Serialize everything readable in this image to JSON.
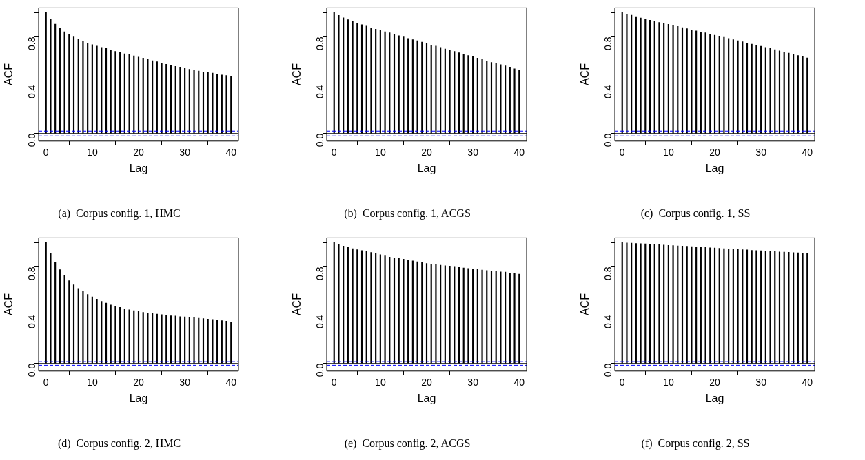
{
  "chart_data": [
    {
      "type": "bar",
      "title": "(a)  Corpus config. 1, HMC",
      "xlabel": "Lag",
      "ylabel": "ACF",
      "x": [
        0,
        1,
        2,
        3,
        4,
        5,
        6,
        7,
        8,
        9,
        10,
        11,
        12,
        13,
        14,
        15,
        16,
        17,
        18,
        19,
        20,
        21,
        22,
        23,
        24,
        25,
        26,
        27,
        28,
        29,
        30,
        31,
        32,
        33,
        34,
        35,
        36,
        37,
        38,
        39,
        40
      ],
      "values": [
        1.0,
        0.945,
        0.905,
        0.87,
        0.842,
        0.82,
        0.8,
        0.78,
        0.766,
        0.75,
        0.735,
        0.724,
        0.712,
        0.705,
        0.69,
        0.68,
        0.67,
        0.66,
        0.655,
        0.643,
        0.633,
        0.624,
        0.613,
        0.603,
        0.594,
        0.582,
        0.573,
        0.564,
        0.555,
        0.545,
        0.538,
        0.531,
        0.524,
        0.517,
        0.51,
        0.506,
        0.5,
        0.49,
        0.485,
        0.48,
        0.475
      ],
      "color": "#000000",
      "xlim": [
        -1.6,
        41.6
      ],
      "xticks": [
        0,
        10,
        20,
        30,
        40
      ],
      "ylim": [
        -0.063,
        1.04
      ],
      "yticks": [
        {
          "value": 0,
          "label": "0.0"
        },
        {
          "value": 0.2,
          "label": null
        },
        {
          "value": 0.4,
          "label": "0.4"
        },
        {
          "value": 0.6,
          "label": null
        },
        {
          "value": 0.8,
          "label": "0.8"
        },
        {
          "value": 1.0,
          "label": null
        }
      ],
      "grid": false,
      "legend": false,
      "ref_lines": [
        {
          "axis": "y",
          "value": 0,
          "color": "#000000",
          "line_style": "solid"
        },
        {
          "axis": "y",
          "value": 0.02,
          "color": "#0000ff",
          "line_style": "dashed"
        },
        {
          "axis": "y",
          "value": -0.02,
          "color": "#0000ff",
          "line_style": "dashed"
        }
      ]
    },
    {
      "type": "bar",
      "title": "(b)  Corpus config. 1, ACGS",
      "xlabel": "Lag",
      "ylabel": "ACF",
      "x": [
        0,
        1,
        2,
        3,
        4,
        5,
        6,
        7,
        8,
        9,
        10,
        11,
        12,
        13,
        14,
        15,
        16,
        17,
        18,
        19,
        20,
        21,
        22,
        23,
        24,
        25,
        26,
        27,
        28,
        29,
        30,
        31,
        32,
        33,
        34,
        35,
        36,
        37,
        38,
        39,
        40
      ],
      "values": [
        1.0,
        0.977,
        0.958,
        0.942,
        0.926,
        0.912,
        0.9,
        0.889,
        0.875,
        0.863,
        0.852,
        0.842,
        0.833,
        0.821,
        0.81,
        0.8,
        0.787,
        0.777,
        0.768,
        0.756,
        0.745,
        0.733,
        0.724,
        0.712,
        0.7,
        0.691,
        0.68,
        0.668,
        0.657,
        0.645,
        0.636,
        0.624,
        0.615,
        0.6,
        0.589,
        0.58,
        0.57,
        0.56,
        0.55,
        0.535,
        0.525
      ],
      "color": "#000000",
      "xlim": [
        -1.6,
        41.6
      ],
      "xticks": [
        0,
        10,
        20,
        30,
        40
      ],
      "ylim": [
        -0.063,
        1.04
      ],
      "yticks": [
        {
          "value": 0,
          "label": "0.0"
        },
        {
          "value": 0.2,
          "label": null
        },
        {
          "value": 0.4,
          "label": "0.4"
        },
        {
          "value": 0.6,
          "label": null
        },
        {
          "value": 0.8,
          "label": "0.8"
        },
        {
          "value": 1.0,
          "label": null
        }
      ],
      "grid": false,
      "legend": false,
      "ref_lines": [
        {
          "axis": "y",
          "value": 0,
          "color": "#000000",
          "line_style": "solid"
        },
        {
          "axis": "y",
          "value": 0.02,
          "color": "#0000ff",
          "line_style": "dashed"
        },
        {
          "axis": "y",
          "value": -0.02,
          "color": "#0000ff",
          "line_style": "dashed"
        }
      ]
    },
    {
      "type": "bar",
      "title": "(c)  Corpus config. 1, SS",
      "xlabel": "Lag",
      "ylabel": "ACF",
      "x": [
        0,
        1,
        2,
        3,
        4,
        5,
        6,
        7,
        8,
        9,
        10,
        11,
        12,
        13,
        14,
        15,
        16,
        17,
        18,
        19,
        20,
        21,
        22,
        23,
        24,
        25,
        26,
        27,
        28,
        29,
        30,
        31,
        32,
        33,
        34,
        35,
        36,
        37,
        38,
        39,
        40
      ],
      "values": [
        1.0,
        0.988,
        0.979,
        0.968,
        0.956,
        0.947,
        0.938,
        0.928,
        0.919,
        0.91,
        0.903,
        0.893,
        0.886,
        0.877,
        0.868,
        0.858,
        0.849,
        0.84,
        0.833,
        0.824,
        0.814,
        0.803,
        0.796,
        0.787,
        0.777,
        0.768,
        0.759,
        0.75,
        0.74,
        0.731,
        0.722,
        0.712,
        0.705,
        0.694,
        0.684,
        0.675,
        0.665,
        0.655,
        0.645,
        0.635,
        0.625
      ],
      "color": "#000000",
      "xlim": [
        -1.6,
        41.6
      ],
      "xticks": [
        0,
        10,
        20,
        30,
        40
      ],
      "ylim": [
        -0.063,
        1.04
      ],
      "yticks": [
        {
          "value": 0,
          "label": "0.0"
        },
        {
          "value": 0.2,
          "label": null
        },
        {
          "value": 0.4,
          "label": "0.4"
        },
        {
          "value": 0.6,
          "label": null
        },
        {
          "value": 0.8,
          "label": "0.8"
        },
        {
          "value": 1.0,
          "label": null
        }
      ],
      "grid": false,
      "legend": false,
      "ref_lines": [
        {
          "axis": "y",
          "value": 0,
          "color": "#000000",
          "line_style": "solid"
        },
        {
          "axis": "y",
          "value": 0.02,
          "color": "#0000ff",
          "line_style": "dashed"
        },
        {
          "axis": "y",
          "value": -0.02,
          "color": "#0000ff",
          "line_style": "dashed"
        }
      ]
    },
    {
      "type": "bar",
      "title": "(d)  Corpus config. 2, HMC",
      "xlabel": "Lag",
      "ylabel": "ACF",
      "x": [
        0,
        1,
        2,
        3,
        4,
        5,
        6,
        7,
        8,
        9,
        10,
        11,
        12,
        13,
        14,
        15,
        16,
        17,
        18,
        19,
        20,
        21,
        22,
        23,
        24,
        25,
        26,
        27,
        28,
        29,
        30,
        31,
        32,
        33,
        34,
        35,
        36,
        37,
        38,
        39,
        40
      ],
      "values": [
        1.0,
        0.912,
        0.835,
        0.777,
        0.728,
        0.686,
        0.651,
        0.621,
        0.595,
        0.572,
        0.551,
        0.533,
        0.514,
        0.5,
        0.484,
        0.474,
        0.465,
        0.453,
        0.444,
        0.437,
        0.43,
        0.423,
        0.419,
        0.414,
        0.409,
        0.405,
        0.4,
        0.395,
        0.393,
        0.388,
        0.386,
        0.381,
        0.379,
        0.374,
        0.372,
        0.367,
        0.365,
        0.36,
        0.355,
        0.35,
        0.345
      ],
      "color": "#000000",
      "xlim": [
        -1.6,
        41.6
      ],
      "xticks": [
        0,
        10,
        20,
        30,
        40
      ],
      "ylim": [
        -0.063,
        1.04
      ],
      "yticks": [
        {
          "value": 0,
          "label": "0.0"
        },
        {
          "value": 0.2,
          "label": null
        },
        {
          "value": 0.4,
          "label": "0.4"
        },
        {
          "value": 0.6,
          "label": null
        },
        {
          "value": 0.8,
          "label": "0.8"
        },
        {
          "value": 1.0,
          "label": null
        }
      ],
      "grid": false,
      "legend": false,
      "ref_lines": [
        {
          "axis": "y",
          "value": 0,
          "color": "#000000",
          "line_style": "solid"
        },
        {
          "axis": "y",
          "value": 0.015,
          "color": "#0000ff",
          "line_style": "dashed"
        },
        {
          "axis": "y",
          "value": -0.015,
          "color": "#0000ff",
          "line_style": "dashed"
        }
      ]
    },
    {
      "type": "bar",
      "title": "(e)  Corpus config. 2, ACGS",
      "xlabel": "Lag",
      "ylabel": "ACF",
      "x": [
        0,
        1,
        2,
        3,
        4,
        5,
        6,
        7,
        8,
        9,
        10,
        11,
        12,
        13,
        14,
        15,
        16,
        17,
        18,
        19,
        20,
        21,
        22,
        23,
        24,
        25,
        26,
        27,
        28,
        29,
        30,
        31,
        32,
        33,
        34,
        35,
        36,
        37,
        38,
        39,
        40
      ],
      "values": [
        1.0,
        0.988,
        0.972,
        0.961,
        0.951,
        0.942,
        0.935,
        0.928,
        0.919,
        0.912,
        0.9,
        0.891,
        0.881,
        0.874,
        0.87,
        0.863,
        0.856,
        0.849,
        0.842,
        0.835,
        0.828,
        0.823,
        0.819,
        0.814,
        0.809,
        0.802,
        0.798,
        0.795,
        0.791,
        0.786,
        0.781,
        0.779,
        0.774,
        0.77,
        0.765,
        0.763,
        0.758,
        0.756,
        0.75,
        0.745,
        0.74
      ],
      "color": "#000000",
      "xlim": [
        -1.6,
        41.6
      ],
      "xticks": [
        0,
        10,
        20,
        30,
        40
      ],
      "ylim": [
        -0.063,
        1.04
      ],
      "yticks": [
        {
          "value": 0,
          "label": "0.0"
        },
        {
          "value": 0.2,
          "label": null
        },
        {
          "value": 0.4,
          "label": "0.4"
        },
        {
          "value": 0.6,
          "label": null
        },
        {
          "value": 0.8,
          "label": "0.8"
        },
        {
          "value": 1.0,
          "label": null
        }
      ],
      "grid": false,
      "legend": false,
      "ref_lines": [
        {
          "axis": "y",
          "value": 0,
          "color": "#000000",
          "line_style": "solid"
        },
        {
          "axis": "y",
          "value": 0.015,
          "color": "#0000ff",
          "line_style": "dashed"
        },
        {
          "axis": "y",
          "value": -0.015,
          "color": "#0000ff",
          "line_style": "dashed"
        }
      ]
    },
    {
      "type": "bar",
      "title": "(f)  Corpus config. 2, SS",
      "xlabel": "Lag",
      "ylabel": "ACF",
      "x": [
        0,
        1,
        2,
        3,
        4,
        5,
        6,
        7,
        8,
        9,
        10,
        11,
        12,
        13,
        14,
        15,
        16,
        17,
        18,
        19,
        20,
        21,
        22,
        23,
        24,
        25,
        26,
        27,
        28,
        29,
        30,
        31,
        32,
        33,
        34,
        35,
        36,
        37,
        38,
        39,
        40
      ],
      "values": [
        1.0,
        0.998,
        0.996,
        0.994,
        0.992,
        0.99,
        0.987,
        0.985,
        0.983,
        0.98,
        0.978,
        0.976,
        0.974,
        0.972,
        0.97,
        0.967,
        0.965,
        0.963,
        0.96,
        0.958,
        0.956,
        0.954,
        0.951,
        0.949,
        0.947,
        0.944,
        0.942,
        0.94,
        0.937,
        0.935,
        0.933,
        0.931,
        0.928,
        0.926,
        0.924,
        0.922,
        0.92,
        0.918,
        0.916,
        0.914,
        0.912
      ],
      "color": "#000000",
      "xlim": [
        -1.6,
        41.6
      ],
      "xticks": [
        0,
        10,
        20,
        30,
        40
      ],
      "ylim": [
        -0.063,
        1.04
      ],
      "yticks": [
        {
          "value": 0,
          "label": "0.0"
        },
        {
          "value": 0.2,
          "label": null
        },
        {
          "value": 0.4,
          "label": "0.4"
        },
        {
          "value": 0.6,
          "label": null
        },
        {
          "value": 0.8,
          "label": "0.8"
        },
        {
          "value": 1.0,
          "label": null
        }
      ],
      "grid": false,
      "legend": false,
      "ref_lines": [
        {
          "axis": "y",
          "value": 0,
          "color": "#000000",
          "line_style": "solid"
        },
        {
          "axis": "y",
          "value": 0.015,
          "color": "#0000ff",
          "line_style": "dashed"
        },
        {
          "axis": "y",
          "value": -0.015,
          "color": "#0000ff",
          "line_style": "dashed"
        }
      ]
    }
  ]
}
